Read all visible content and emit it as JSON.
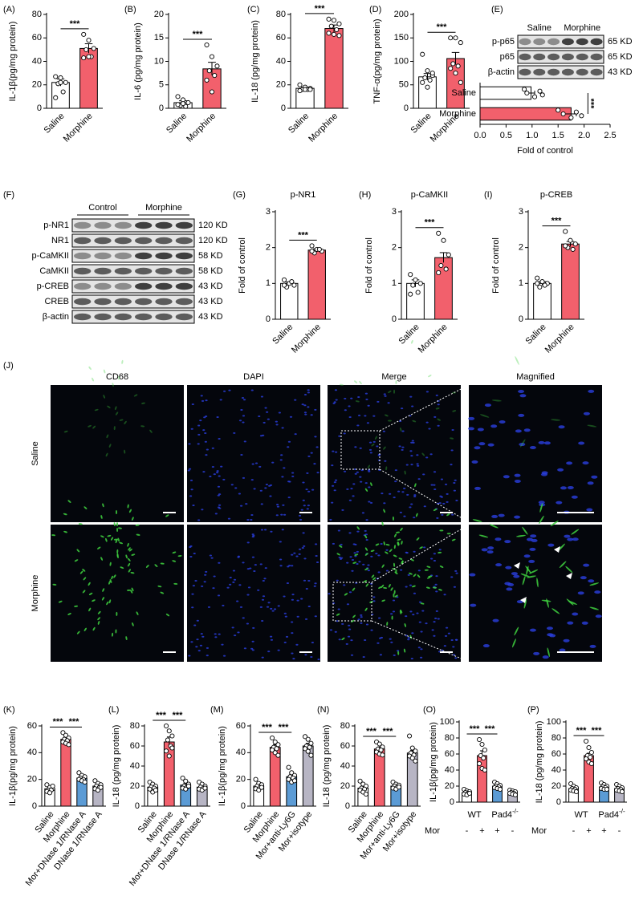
{
  "chart_data": [
    {
      "type": "bar",
      "panel": "(A)",
      "ylabel": "IL-1β(pg/mg protein)",
      "categories": [
        "Saline",
        "Morphine"
      ],
      "values": [
        22,
        51
      ],
      "errors": [
        3,
        4
      ],
      "colors": [
        "#ffffff",
        "#f2606c"
      ],
      "points": [
        [
          27,
          26,
          22,
          21,
          14,
          9,
          22
        ],
        [
          63,
          58,
          51,
          50,
          44,
          43,
          44
        ]
      ],
      "ylim": [
        0,
        80
      ],
      "yticks": [
        0,
        20,
        40,
        60,
        80
      ],
      "significance": [
        {
          "pair": [
            0,
            1
          ],
          "label": "***"
        }
      ]
    },
    {
      "type": "bar",
      "panel": "(B)",
      "ylabel": "IL-6 (pg/mg protein)",
      "categories": [
        "Saline",
        "Morphine"
      ],
      "values": [
        1.2,
        8.4
      ],
      "errors": [
        0.4,
        1.4
      ],
      "colors": [
        "#ffffff",
        "#f2606c"
      ],
      "points": [
        [
          2.5,
          1.8,
          1.2,
          0.6,
          0.4,
          0.8,
          1.0
        ],
        [
          13.5,
          11,
          9,
          8,
          7,
          6,
          3.5
        ]
      ],
      "ylim": [
        0,
        20
      ],
      "yticks": [
        0,
        5,
        10,
        15,
        20
      ],
      "significance": [
        {
          "pair": [
            0,
            1
          ],
          "label": "***"
        }
      ]
    },
    {
      "type": "bar",
      "panel": "(C)",
      "ylabel": "IL-18 (pg/mg protein)",
      "categories": [
        "Saline",
        "Morphine"
      ],
      "values": [
        17,
        68
      ],
      "errors": [
        1,
        3
      ],
      "colors": [
        "#ffffff",
        "#f2606c"
      ],
      "points": [
        [
          20,
          18,
          17,
          16,
          16,
          15,
          16,
          16
        ],
        [
          76,
          75,
          72,
          70,
          67,
          64,
          63,
          62
        ]
      ],
      "ylim": [
        0,
        80
      ],
      "yticks": [
        0,
        20,
        40,
        60,
        80
      ],
      "significance": [
        {
          "pair": [
            0,
            1
          ],
          "label": "***"
        }
      ]
    },
    {
      "type": "bar",
      "panel": "(D)",
      "ylabel": "TNF-α(pg/mg protein)",
      "categories": [
        "Saline",
        "Morphine"
      ],
      "values": [
        67,
        106
      ],
      "errors": [
        7,
        13
      ],
      "colors": [
        "#ffffff",
        "#f2606c"
      ],
      "points": [
        [
          115,
          80,
          70,
          65,
          60,
          55,
          45,
          75
        ],
        [
          150,
          150,
          140,
          95,
          90,
          85,
          75,
          55
        ]
      ],
      "ylim": [
        0,
        200
      ],
      "yticks": [
        0,
        50,
        100,
        150,
        200
      ],
      "significance": [
        {
          "pair": [
            0,
            1
          ],
          "label": "***"
        }
      ]
    },
    {
      "type": "hbar",
      "xlabel": "Fold of control",
      "categories": [
        "Saline",
        "Morphine"
      ],
      "values": [
        0.98,
        1.75
      ],
      "errors": [
        0.07,
        0.1
      ],
      "colors": [
        "#ffffff",
        "#f2606c"
      ],
      "points": [
        [
          0.85,
          0.9,
          1.05,
          1.15,
          1.2
        ],
        [
          1.5,
          1.6,
          1.75,
          1.85,
          1.95
        ]
      ],
      "xlim": [
        0,
        2.5
      ],
      "xticks": [
        {
          "value": 0,
          "label": "0.0"
        },
        0.5,
        {
          "value": 1,
          "label": "1.0"
        },
        1.5,
        {
          "value": 2,
          "label": "2.0"
        },
        2.5
      ],
      "significance": [
        {
          "pair": [
            0,
            1
          ],
          "label": "***"
        }
      ]
    },
    {
      "type": "bar",
      "panel": "(G)",
      "title": "p-NR1",
      "ylabel": "Fold of control",
      "categories": [
        "Saline",
        "Morphine"
      ],
      "values": [
        1.0,
        1.93
      ],
      "errors": [
        0.04,
        0.04
      ],
      "colors": [
        "#ffffff",
        "#f2606c"
      ],
      "points": [
        [
          1.1,
          1.0,
          0.95,
          0.9,
          1.05,
          0.95
        ],
        [
          2.05,
          1.95,
          1.9,
          1.85,
          1.95,
          1.9
        ]
      ],
      "ylim": [
        0,
        3
      ],
      "yticks": [
        0,
        1,
        2,
        3
      ],
      "significance": [
        {
          "pair": [
            0,
            1
          ],
          "label": "***"
        }
      ]
    },
    {
      "type": "bar",
      "panel": "(H)",
      "title": "p-CaMKII",
      "ylabel": "Fold of control",
      "categories": [
        "Saline",
        "Morphine"
      ],
      "values": [
        1.0,
        1.72
      ],
      "errors": [
        0.1,
        0.14
      ],
      "colors": [
        "#ffffff",
        "#f2606c"
      ],
      "points": [
        [
          1.25,
          1.1,
          1.0,
          0.95,
          0.75,
          0.7
        ],
        [
          2.4,
          2.2,
          1.8,
          1.5,
          1.4,
          1.3
        ]
      ],
      "ylim": [
        0,
        3
      ],
      "yticks": [
        0,
        1,
        2,
        3
      ],
      "significance": [
        {
          "pair": [
            0,
            1
          ],
          "label": "***"
        }
      ]
    },
    {
      "type": "bar",
      "panel": "(I)",
      "title": "p-CREB",
      "ylabel": "Fold of control",
      "categories": [
        "Saline",
        "Morphine"
      ],
      "values": [
        1.0,
        2.1
      ],
      "errors": [
        0.05,
        0.07
      ],
      "colors": [
        "#ffffff",
        "#f2606c"
      ],
      "points": [
        [
          1.15,
          1.05,
          1.0,
          0.9,
          0.95,
          1.0
        ],
        [
          2.45,
          2.2,
          2.1,
          2.0,
          1.95,
          2.05
        ]
      ],
      "ylim": [
        0,
        3
      ],
      "yticks": [
        0,
        1,
        2,
        3
      ],
      "significance": [
        {
          "pair": [
            0,
            1
          ],
          "label": "***"
        }
      ]
    },
    {
      "type": "bar",
      "panel": "(K)",
      "ylabel": "IL-1β(pg/mg protein)",
      "categories": [
        "Saline",
        "Morphine",
        "Mor+DNase 1/RNase A",
        "DNase 1/RNase A"
      ],
      "values": [
        13,
        50,
        21,
        15
      ],
      "errors": [
        1,
        1.5,
        1,
        1
      ],
      "colors": [
        "#ffffff",
        "#f2606c",
        "#5b9bd5",
        "#b7b5c4"
      ],
      "points": [
        [
          16,
          14,
          13,
          12,
          12,
          11,
          10,
          15
        ],
        [
          55,
          53,
          51,
          50,
          49,
          48,
          47,
          46
        ],
        [
          25,
          23,
          22,
          21,
          20,
          20,
          19,
          18
        ],
        [
          19,
          17,
          16,
          15,
          14,
          13,
          12,
          14
        ]
      ],
      "ylim": [
        0,
        60
      ],
      "yticks": [
        0,
        20,
        40,
        60
      ],
      "significance": [
        {
          "pair": [
            0,
            1
          ],
          "label": "***"
        },
        {
          "pair": [
            1,
            2
          ],
          "label": "***"
        }
      ]
    },
    {
      "type": "bar",
      "panel": "(L)",
      "ylabel": "IL-18 (pg/mg protein)",
      "categories": [
        "Saline",
        "Morphine",
        "Mor+DNase 1/RNase A",
        "DNase 1/RNase A"
      ],
      "values": [
        19,
        64,
        21,
        19
      ],
      "errors": [
        2,
        5,
        2,
        1.5
      ],
      "colors": [
        "#ffffff",
        "#f2606c",
        "#5b9bd5",
        "#b7b5c4"
      ],
      "points": [
        [
          24,
          22,
          20,
          19,
          18,
          17,
          14,
          16
        ],
        [
          80,
          75,
          70,
          66,
          60,
          55,
          50,
          58
        ],
        [
          28,
          25,
          22,
          20,
          19,
          18,
          17,
          20
        ],
        [
          24,
          22,
          20,
          19,
          18,
          17,
          16,
          18
        ]
      ],
      "ylim": [
        0,
        80
      ],
      "yticks": [
        0,
        20,
        40,
        60,
        80
      ],
      "significance": [
        {
          "pair": [
            0,
            1
          ],
          "label": "***"
        },
        {
          "pair": [
            1,
            2
          ],
          "label": "***"
        }
      ]
    },
    {
      "type": "bar",
      "panel": "(M)",
      "ylabel": "IL-1β(pg/mg protein)",
      "categories": [
        "Saline",
        "Morphine",
        "Mor+anti-Ly6G",
        "Mor+isotype"
      ],
      "values": [
        15,
        44,
        22,
        45
      ],
      "errors": [
        1.5,
        2,
        2,
        2
      ],
      "colors": [
        "#ffffff",
        "#f2606c",
        "#5b9bd5",
        "#b7b5c4"
      ],
      "points": [
        [
          20,
          17,
          16,
          15,
          14,
          13,
          12,
          14
        ],
        [
          51,
          48,
          46,
          44,
          43,
          42,
          40,
          38
        ],
        [
          29,
          25,
          23,
          22,
          21,
          20,
          18,
          19
        ],
        [
          52,
          50,
          47,
          45,
          44,
          43,
          41,
          38
        ]
      ],
      "ylim": [
        0,
        60
      ],
      "yticks": [
        0,
        20,
        40,
        60
      ],
      "significance": [
        {
          "pair": [
            0,
            1
          ],
          "label": "***"
        },
        {
          "pair": [
            1,
            2
          ],
          "label": "***"
        }
      ]
    },
    {
      "type": "bar",
      "panel": "(N)",
      "ylabel": "IL-18 (pg/mg protein)",
      "categories": [
        "Saline",
        "Morphine",
        "Mor+anti-Ly6G",
        "Mor+isotype"
      ],
      "values": [
        18,
        57,
        20,
        53
      ],
      "errors": [
        2,
        2,
        1.5,
        2.5
      ],
      "colors": [
        "#ffffff",
        "#f2606c",
        "#5b9bd5",
        "#b7b5c4"
      ],
      "points": [
        [
          25,
          22,
          20,
          18,
          17,
          16,
          14,
          12
        ],
        [
          64,
          62,
          59,
          57,
          56,
          54,
          52,
          51
        ],
        [
          24,
          22,
          21,
          20,
          19,
          18,
          17,
          19
        ],
        [
          70,
          58,
          55,
          53,
          51,
          50,
          48,
          45
        ]
      ],
      "ylim": [
        0,
        80
      ],
      "yticks": [
        0,
        20,
        40,
        60,
        80
      ],
      "significance": [
        {
          "pair": [
            0,
            1
          ],
          "label": "***"
        },
        {
          "pair": [
            1,
            2
          ],
          "label": "***"
        }
      ]
    },
    {
      "type": "bar",
      "panel": "(O)",
      "ylabel": "IL-1β(pg/mg protein)",
      "categories": [
        "-",
        "+",
        "+",
        "-"
      ],
      "row_label": "Mor",
      "groups": [
        {
          "label": "WT",
          "span": [
            0,
            1
          ]
        },
        {
          "label": "Pad4",
          "superscript": "-/-",
          "span": [
            2,
            3
          ]
        }
      ],
      "values": [
        12,
        58,
        20,
        12
      ],
      "errors": [
        1.5,
        6,
        1.5,
        1
      ],
      "colors": [
        "#ffffff",
        "#f2606c",
        "#5b9bd5",
        "#b7b5c4"
      ],
      "points": [
        [
          16,
          14,
          13,
          12,
          11,
          10,
          9,
          11
        ],
        [
          78,
          72,
          65,
          58,
          55,
          48,
          42,
          40
        ],
        [
          25,
          23,
          21,
          20,
          19,
          18,
          17,
          16
        ],
        [
          15,
          14,
          13,
          12,
          11,
          11,
          10,
          9
        ]
      ],
      "ylim": [
        0,
        100
      ],
      "yticks": [
        0,
        20,
        40,
        60,
        80,
        100
      ],
      "significance": [
        {
          "pair": [
            0,
            1
          ],
          "label": "***"
        },
        {
          "pair": [
            1,
            2
          ],
          "label": "***"
        }
      ]
    },
    {
      "type": "bar",
      "panel": "(P)",
      "ylabel": "IL-18 (pg/mg protein)",
      "categories": [
        "-",
        "+",
        "+",
        "-"
      ],
      "row_label": "Mor",
      "groups": [
        {
          "label": "WT",
          "span": [
            0,
            1
          ]
        },
        {
          "label": "Pad4",
          "superscript": "-/-",
          "span": [
            2,
            3
          ]
        }
      ],
      "values": [
        17,
        58,
        19,
        17
      ],
      "errors": [
        1.5,
        3,
        1.5,
        1
      ],
      "colors": [
        "#ffffff",
        "#f2606c",
        "#5b9bd5",
        "#b7b5c4"
      ],
      "points": [
        [
          23,
          20,
          18,
          17,
          16,
          15,
          14,
          13
        ],
        [
          76,
          68,
          62,
          58,
          56,
          54,
          50,
          48
        ],
        [
          24,
          22,
          20,
          19,
          18,
          17,
          16,
          16
        ],
        [
          22,
          20,
          18,
          17,
          16,
          15,
          14,
          13
        ]
      ],
      "ylim": [
        0,
        100
      ],
      "yticks": [
        0,
        20,
        40,
        60,
        80,
        100
      ],
      "significance": [
        {
          "pair": [
            0,
            1
          ],
          "label": "***"
        },
        {
          "pair": [
            1,
            2
          ],
          "label": "***"
        }
      ]
    }
  ],
  "blots": [
    {
      "panel": "(E)",
      "groups": [
        "Saline",
        "Morphine"
      ],
      "rows": [
        {
          "name": "p-p65",
          "size": "65 KD"
        },
        {
          "name": "p65",
          "size": "65 KD"
        },
        {
          "name": "β-actin",
          "size": "43 KD"
        }
      ]
    },
    {
      "panel": "(F)",
      "groups": [
        "Control",
        "Morphine"
      ],
      "rows": [
        {
          "name": "p-NR1",
          "size": "120 KD"
        },
        {
          "name": "NR1",
          "size": "120 KD"
        },
        {
          "name": "p-CaMKII",
          "size": "58 KD"
        },
        {
          "name": "CaMKII",
          "size": "58 KD"
        },
        {
          "name": "p-CREB",
          "size": "43 KD"
        },
        {
          "name": "CREB",
          "size": "43 KD"
        },
        {
          "name": "β-actin",
          "size": "43 KD"
        }
      ]
    }
  ],
  "images": {
    "panel": "(J)",
    "columns": [
      "CD68",
      "DAPI",
      "Merge",
      "Magnified"
    ],
    "rows": [
      "Saline",
      "Morphine"
    ]
  }
}
